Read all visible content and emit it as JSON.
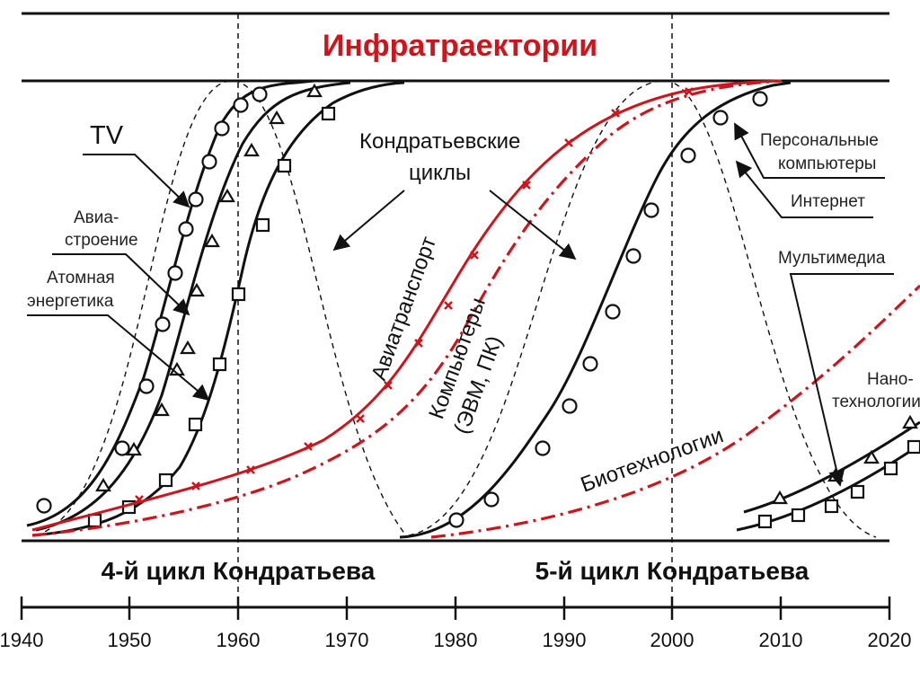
{
  "title": "Инфратраектории",
  "cycle_labels": [
    "4-й цикл Кондратьева",
    "5-й цикл Кондратьева"
  ],
  "axis": {
    "ticks": [
      "1940",
      "1950",
      "1960",
      "1970",
      "1980",
      "1990",
      "2000",
      "2010",
      "2020"
    ]
  },
  "labels": {
    "tv": "TV",
    "avia_stroenie_1": "Авиа-",
    "avia_stroenie_2": "строение",
    "atom_1": "Атомная",
    "atom_2": "энергетика",
    "kondratiev_1": "Кондратьевские",
    "kondratiev_2": "циклы",
    "aviatransport": "Авиатранспорт",
    "computers_1": "Компьютеры",
    "computers_2": "(ЭВМ, ПК)",
    "biotech": "Биотехнологии",
    "pc_1": "Персональные",
    "pc_2": "компьютеры",
    "internet": "Интернет",
    "multimedia": "Мультимедиа",
    "nano_1": "Нано-",
    "nano_2": "технологии"
  },
  "colors": {
    "red": "#d0141b",
    "black": "#111111"
  }
}
